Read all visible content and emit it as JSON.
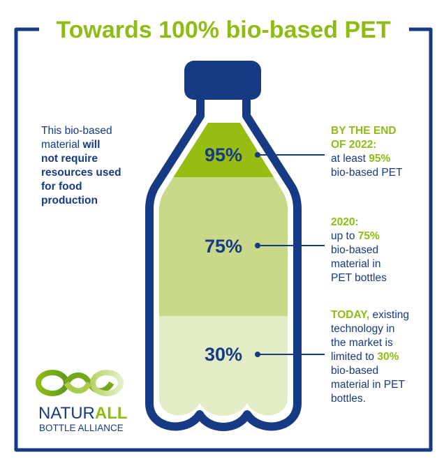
{
  "title": "Towards 100% bio-based PET",
  "colors": {
    "navy": "#163a84",
    "accent_green": "#8fbc14",
    "fill_95": "#97bd13",
    "fill_75": "#c8d98a",
    "fill_30": "#e2ecc5"
  },
  "bottle": {
    "levels": [
      {
        "label": "95%",
        "value": 95
      },
      {
        "label": "75%",
        "value": 75
      },
      {
        "label": "30%",
        "value": 30
      }
    ]
  },
  "left_note": {
    "line1": "This bio-based",
    "line2a": "material ",
    "line2b": "will",
    "line3": "not require",
    "line4": "resources used",
    "line5": "for food",
    "line6": "production"
  },
  "callouts": {
    "c2022": {
      "l1": "BY THE END",
      "l2": "OF 2022:",
      "l3a": "at least ",
      "l3b": "95%",
      "l4": "bio-based PET"
    },
    "c2020": {
      "l1": "2020:",
      "l2a": "up to ",
      "l2b": "75%",
      "l3": "bio-based",
      "l4": "material in",
      "l5": "PET bottles"
    },
    "today": {
      "l1a": "TODAY,",
      "l1b": " existing",
      "l2": "technology in",
      "l3": "the market is",
      "l4a": "limited to ",
      "l4b": "30%",
      "l5": "bio-based",
      "l6": "material in PET",
      "l7": "bottles."
    }
  },
  "logo": {
    "name_a": "NATUR",
    "name_b": "ALL",
    "subtitle": "BOTTLE ALLIANCE",
    "icon": "infinity-loop-icon"
  }
}
